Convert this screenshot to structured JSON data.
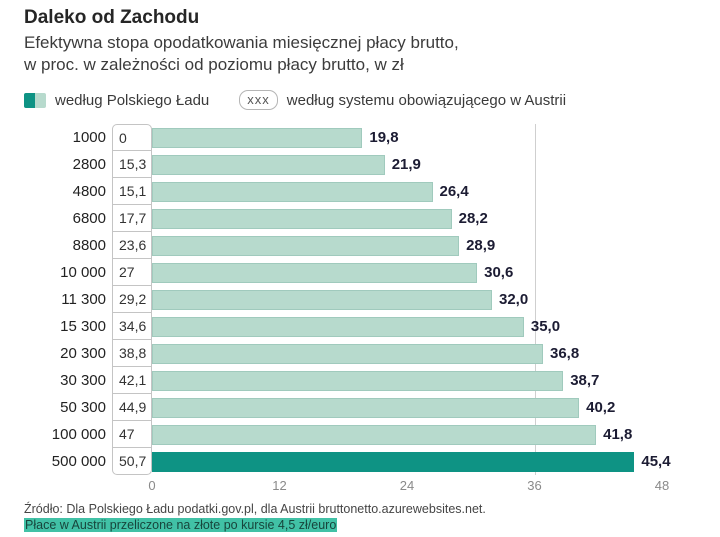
{
  "header": {
    "title": "Daleko od Zachodu",
    "subtitle_line1": "Efektywna stopa opodatkowania miesięcznej płacy brutto,",
    "subtitle_line2": "w proc. w zależności od poziomu płacy brutto, w zł"
  },
  "legend": {
    "polski_lad_label": "według Polskiego Ładu",
    "austria_symbol": "xxx",
    "austria_label": "według systemu obowiązującego w Austrii"
  },
  "chart_data": {
    "type": "bar",
    "orientation": "horizontal",
    "title": "Daleko od Zachodu",
    "subtitle": "Efektywna stopa opodatkowania miesięcznej płacy brutto, w proc. w zależności od poziomu płacy brutto, w zł",
    "categories": [
      "1000",
      "2800",
      "4800",
      "6800",
      "8800",
      "10 000",
      "11 300",
      "15 300",
      "20 300",
      "30 300",
      "50 300",
      "100 000",
      "500 000"
    ],
    "series": [
      {
        "name": "według Polskiego Ładu",
        "render": "bars",
        "values": [
          19.8,
          21.9,
          26.4,
          28.2,
          28.9,
          30.6,
          32.0,
          35.0,
          36.8,
          38.7,
          40.2,
          41.8,
          45.4
        ],
        "labels": [
          "19,8",
          "21,9",
          "26,4",
          "28,2",
          "28,9",
          "30,6",
          "32,0",
          "35,0",
          "36,8",
          "38,7",
          "40,2",
          "41,8",
          "45,4"
        ]
      },
      {
        "name": "według systemu obowiązującego w Austrii",
        "render": "boxed-values",
        "values": [
          0,
          15.3,
          15.1,
          17.7,
          23.6,
          27,
          29.2,
          34.6,
          38.8,
          42.1,
          44.9,
          47,
          50.7
        ],
        "labels": [
          "0",
          "15,3",
          "15,1",
          "17,7",
          "23,6",
          "27",
          "29,2",
          "34,6",
          "38,8",
          "42,1",
          "44,9",
          "47",
          "50,7"
        ]
      }
    ],
    "xlabel": "",
    "ylabel": "",
    "xlim": [
      0,
      48
    ],
    "xticks": [
      0,
      12,
      24,
      36,
      48
    ],
    "gridlines_x": [
      36
    ],
    "highlight_last_bar": true,
    "legend_position": "top"
  },
  "source": {
    "line1": "Źródło: Dla Polskiego Ładu podatki.gov.pl, dla Austrii bruttonetto.azurewebsites.net.",
    "line2": "Płace w Austrii przeliczone na złote po kursie 4,5 zł/euro"
  },
  "colors": {
    "bar": "#b7dacd",
    "bar_highlight": "#0e9384",
    "gridline": "#cfcfcf",
    "value_box_border": "#c4c4c4",
    "source_highlight": "#41c1a6"
  }
}
